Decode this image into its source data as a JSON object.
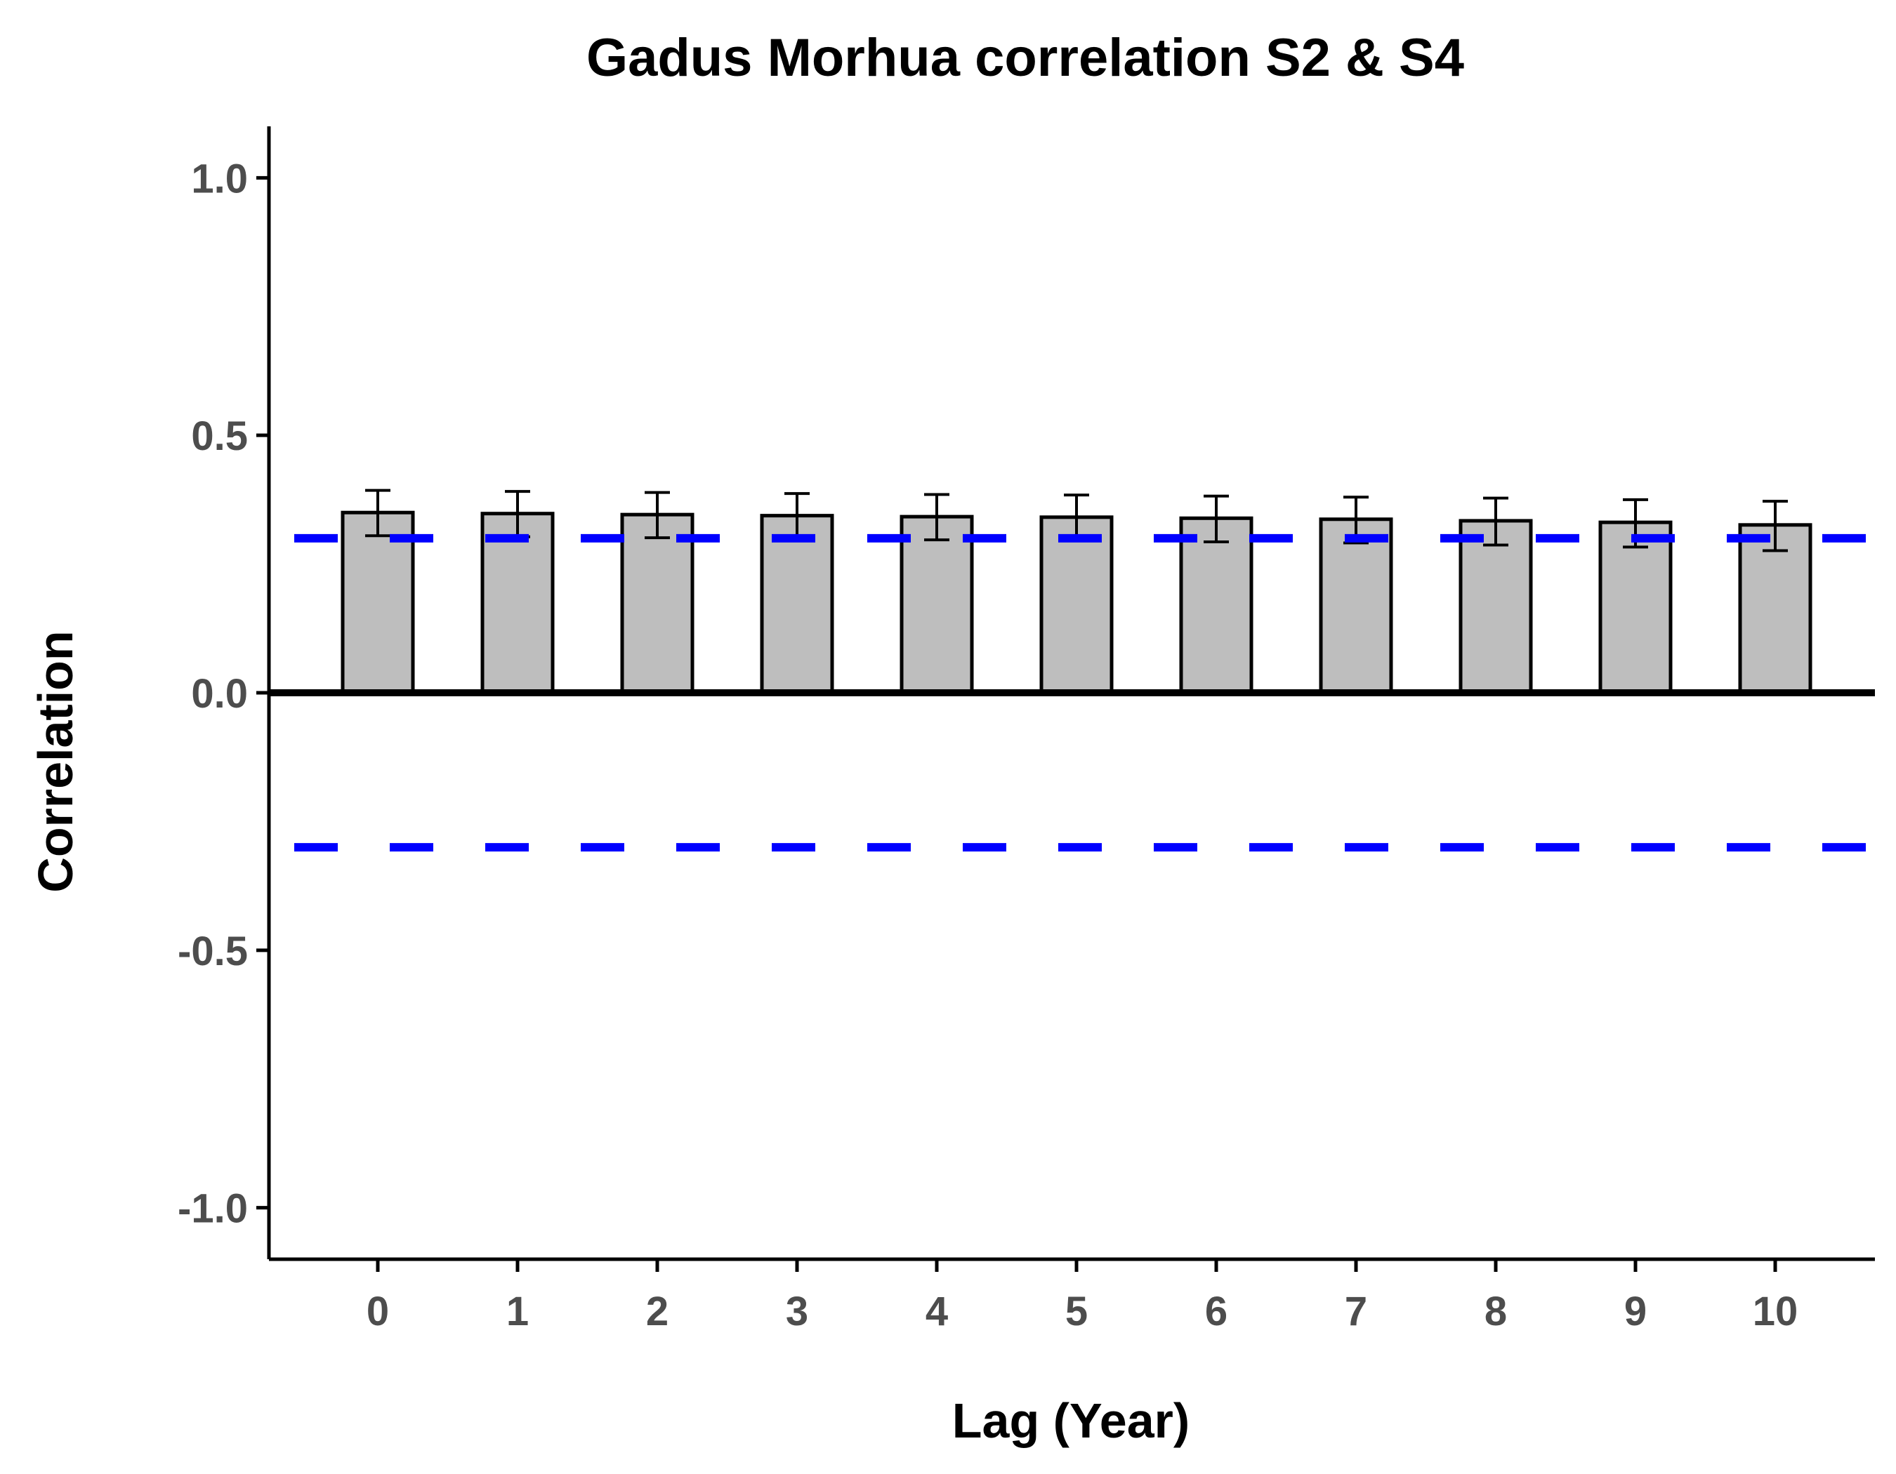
{
  "chart_data": {
    "type": "bar",
    "title": "Gadus Morhua correlation S2 & S4",
    "xlabel": "Lag (Year)",
    "ylabel": "Correlation",
    "categories": [
      "0",
      "1",
      "2",
      "3",
      "4",
      "5",
      "6",
      "7",
      "8",
      "9",
      "10"
    ],
    "values": [
      0.35,
      0.348,
      0.346,
      0.344,
      0.342,
      0.341,
      0.339,
      0.337,
      0.334,
      0.331,
      0.326
    ],
    "error_low": [
      0.305,
      0.303,
      0.301,
      0.299,
      0.297,
      0.296,
      0.293,
      0.291,
      0.287,
      0.283,
      0.276
    ],
    "error_high": [
      0.393,
      0.391,
      0.389,
      0.387,
      0.385,
      0.384,
      0.382,
      0.38,
      0.378,
      0.375,
      0.372
    ],
    "reference_lines": [
      0.3,
      -0.3
    ],
    "ylim": [
      -1.1,
      1.1
    ],
    "yticks": [
      -1.0,
      -0.5,
      0.0,
      0.5,
      1.0
    ],
    "ytick_labels": [
      "-1.0",
      "-0.5",
      "0.0",
      "0.5",
      "1.0"
    ],
    "bar_color": "#bebebe",
    "bar_border_color": "#000000",
    "reference_line_color": "#0000ff",
    "zero_line_color": "#000000",
    "grid": false,
    "legend": "none"
  }
}
